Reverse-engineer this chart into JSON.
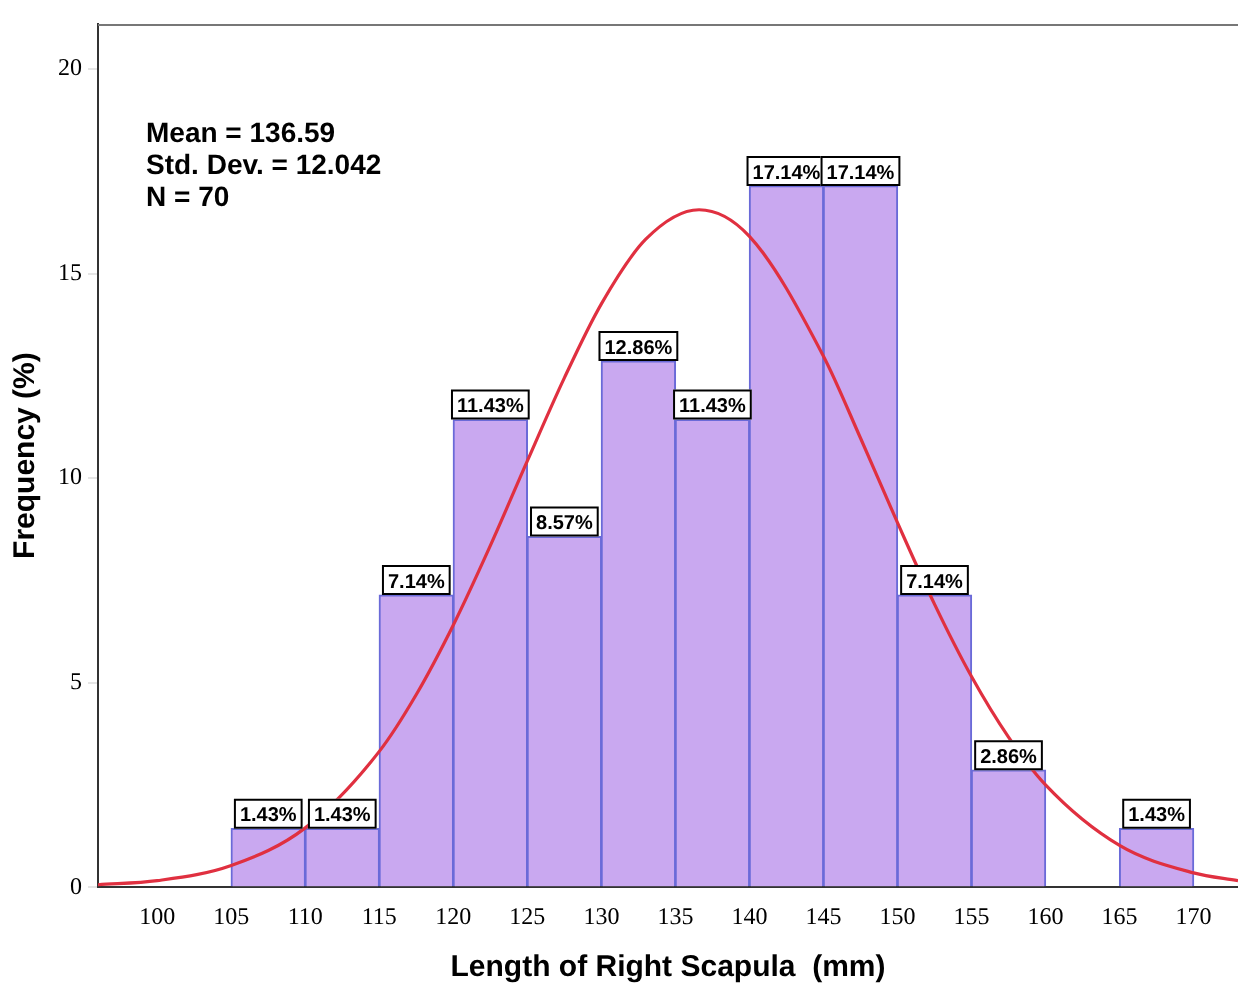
{
  "chart_data": {
    "type": "histogram",
    "xlabel": "Length of Right Scapula  (mm)",
    "ylabel": "Frequency (%)",
    "bins": [
      105,
      110,
      115,
      120,
      125,
      130,
      135,
      140,
      145,
      150,
      155,
      160,
      165,
      170
    ],
    "series": [
      {
        "type": "histogram",
        "color": "#c9a8f0",
        "values": [
          1.43,
          1.43,
          7.14,
          11.43,
          8.57,
          12.86,
          11.43,
          17.14,
          17.14,
          7.14,
          2.86,
          0,
          1.43
        ],
        "value_labels": [
          "1.43%",
          "1.43%",
          "7.14%",
          "11.43%",
          "8.57%",
          "12.86%",
          "11.43%",
          "17.14%",
          "17.14%",
          "7.14%",
          "2.86%",
          null,
          "1.43%"
        ]
      },
      {
        "type": "line",
        "color": "#e03040",
        "x": [
          96,
          100,
          105,
          110,
          115,
          117.5,
          120,
          122.5,
          125,
          127.5,
          130,
          133,
          136.6,
          140,
          145,
          147.5,
          150,
          152.5,
          155,
          157.5,
          160,
          165,
          170,
          173
        ],
        "values": [
          0.06,
          0.16,
          0.53,
          1.45,
          3.32,
          4.71,
          6.41,
          8.35,
          10.42,
          12.45,
          14.26,
          15.84,
          16.56,
          15.91,
          12.98,
          10.98,
          8.91,
          6.92,
          5.15,
          3.67,
          2.5,
          1.02,
          0.35,
          0.16
        ]
      }
    ],
    "xlim": [
      96,
      173
    ],
    "xticks": [
      100,
      105,
      110,
      115,
      120,
      125,
      130,
      135,
      140,
      145,
      150,
      155,
      160,
      165,
      170
    ],
    "ylim": [
      0,
      21.1
    ],
    "yticks": [
      0,
      5,
      10,
      15,
      20
    ],
    "grid": false,
    "legend": false,
    "marker": "none",
    "line_style": "solid",
    "annotations": [
      "Mean = 136.59",
      "Std. Dev. = 12.042",
      "N = 70"
    ]
  }
}
